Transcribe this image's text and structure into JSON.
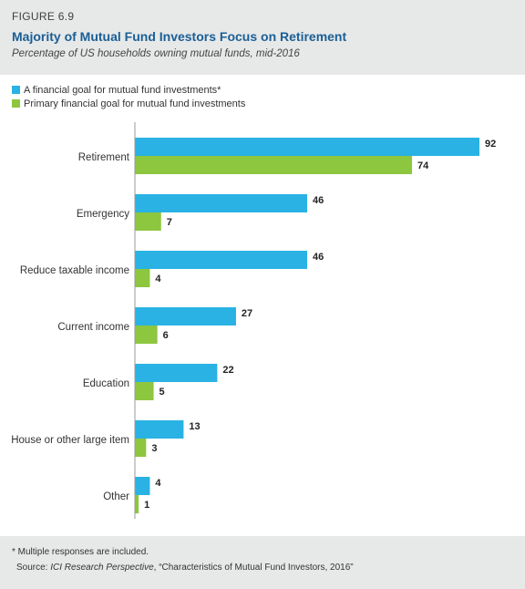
{
  "header": {
    "figure_label": "FIGURE 6.9",
    "title": "Majority of Mutual Fund Investors Focus on Retirement",
    "subtitle": "Percentage of US households owning mutual funds, mid-2016"
  },
  "colors": {
    "series1": "#29b2e3",
    "series2": "#8dc63f",
    "title": "#1a5f96",
    "panel_bg": "#e7e8e8"
  },
  "chart_data": {
    "type": "bar",
    "orientation": "horizontal",
    "title": "Majority of Mutual Fund Investors Focus on Retirement",
    "subtitle": "Percentage of US households owning mutual funds, mid-2016",
    "xlabel": "",
    "ylabel": "",
    "xlim": [
      0,
      92
    ],
    "grid": false,
    "legend_position": "top-left",
    "categories": [
      "Retirement",
      "Emergency",
      "Reduce taxable income",
      "Current income",
      "Education",
      "House or other large item",
      "Other"
    ],
    "series": [
      {
        "name": "A financial goal for mutual fund investments*",
        "values": [
          92,
          46,
          46,
          27,
          22,
          13,
          4
        ]
      },
      {
        "name": "Primary financial goal for mutual fund investments",
        "values": [
          74,
          7,
          4,
          6,
          5,
          3,
          1
        ]
      }
    ]
  },
  "footer": {
    "note": "* Multiple responses are included.",
    "source_prefix": "Source: ",
    "source_italic": "ICI Research Perspective",
    "source_rest": ", “Characteristics of Mutual Fund Investors, 2016”"
  }
}
